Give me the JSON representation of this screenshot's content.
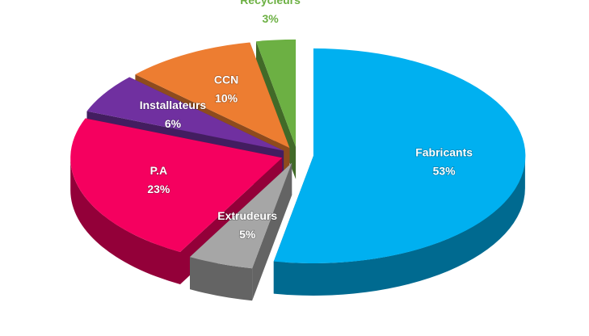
{
  "chart_data": {
    "type": "pie",
    "categories": [
      "Fabricants",
      "Extrudeurs",
      "P.A",
      "Installateurs",
      "CCN",
      "Recycleurs"
    ],
    "values": [
      53,
      5,
      23,
      6,
      10,
      3
    ],
    "value_labels": [
      "53%",
      "5%",
      "23%",
      "6%",
      "10%",
      "3%"
    ],
    "colors": [
      "#00b0f0",
      "#a6a6a6",
      "#f5005f",
      "#7030a0",
      "#ed7d31",
      "#6cb043"
    ]
  }
}
